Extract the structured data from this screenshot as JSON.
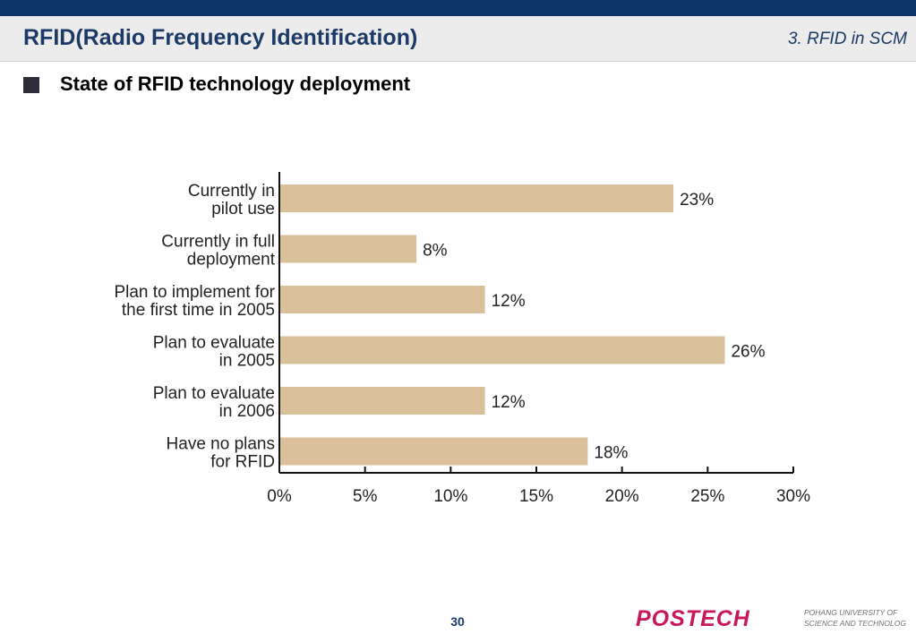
{
  "header": {
    "title": "RFID(Radio Frequency Identification)",
    "section": "3. RFID in SCM"
  },
  "subtitle": "State of RFID technology deployment",
  "chart_data": {
    "type": "bar",
    "orientation": "horizontal",
    "categories": [
      [
        "Currently in",
        "pilot use"
      ],
      [
        "Currently in full",
        "deployment"
      ],
      [
        "Plan to implement for",
        "the first time in 2005"
      ],
      [
        "Plan to evaluate",
        "in 2005"
      ],
      [
        "Plan to evaluate",
        "in 2006"
      ],
      [
        "Have no plans",
        "for RFID"
      ]
    ],
    "values": [
      23,
      8,
      12,
      26,
      12,
      18
    ],
    "data_labels": [
      "23%",
      "8%",
      "12%",
      "26%",
      "12%",
      "18%"
    ],
    "x_ticks": [
      "0%",
      "5%",
      "10%",
      "15%",
      "20%",
      "25%",
      "30%"
    ],
    "xlim": [
      0,
      30
    ],
    "grid": false,
    "legend": "none",
    "bar_color": "#d9bf9a"
  },
  "footer": {
    "page_number": "30",
    "logo_text": "POSTECH",
    "university_line1": "POHANG UNIVERSITY OF",
    "university_line2": "SCIENCE AND TECHNOLOGY",
    "brand_color": "#c8175d"
  }
}
